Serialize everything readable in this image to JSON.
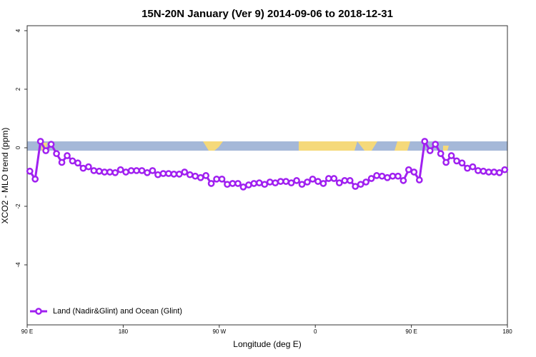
{
  "chart_data": {
    "type": "line",
    "title": "15N-20N January (Ver 9)   2014-09-06 to 2018-12-31",
    "x_label": "Longitude (deg E)",
    "y_label": "XCO2 - MLO trend (ppm)",
    "xlim": [
      90,
      540
    ],
    "xticks": [
      {
        "value": 90,
        "label": "90 E"
      },
      {
        "value": 180,
        "label": "180"
      },
      {
        "value": 270,
        "label": "90 W"
      },
      {
        "value": 360,
        "label": "0"
      },
      {
        "value": 450,
        "label": "90 E"
      },
      {
        "value": 540,
        "label": "180"
      }
    ],
    "ylim": [
      -6.05,
      4.17
    ],
    "yticks": [
      -4,
      -2,
      0,
      2,
      4
    ],
    "legend": "bottom-left",
    "x": [
      92.5,
      97.5,
      102.5,
      107.5,
      112.5,
      117.5,
      122.5,
      127.5,
      132.5,
      137.5,
      142.5,
      147.5,
      152.5,
      157.5,
      162.5,
      167.5,
      172.5,
      177.5,
      182.5,
      187.5,
      192.5,
      197.5,
      202.5,
      207.5,
      212.5,
      217.5,
      222.5,
      227.5,
      232.5,
      237.5,
      242.5,
      247.5,
      252.5,
      257.5,
      262.5,
      267.5,
      272.5,
      277.5,
      282.5,
      287.5,
      292.5,
      297.5,
      302.5,
      307.5,
      312.5,
      317.5,
      322.5,
      327.5,
      332.5,
      337.5,
      342.5,
      347.5,
      352.5,
      357.5,
      362.5,
      367.5,
      372.5,
      377.5,
      382.5,
      387.5,
      392.5,
      397.5,
      402.5,
      407.5,
      412.5,
      417.5,
      422.5,
      427.5,
      432.5,
      437.5,
      442.5,
      447.5,
      452.5,
      457.5,
      462.5,
      467.5,
      472.5,
      477.5,
      482.5,
      487.5,
      492.5,
      497.5,
      502.5,
      507.5,
      512.5,
      517.5,
      522.5,
      527.5,
      532.5,
      537.5
    ],
    "series": [
      {
        "name": "Land (Nadir&Glint) and Ocean (Glint)",
        "color": "#a020f0",
        "values": [
          -0.8,
          -1.07,
          0.22,
          -0.1,
          0.12,
          -0.2,
          -0.5,
          -0.27,
          -0.45,
          -0.52,
          -0.7,
          -0.65,
          -0.78,
          -0.8,
          -0.83,
          -0.83,
          -0.85,
          -0.75,
          -0.83,
          -0.78,
          -0.78,
          -0.78,
          -0.85,
          -0.78,
          -0.92,
          -0.88,
          -0.88,
          -0.9,
          -0.9,
          -0.83,
          -0.92,
          -0.97,
          -1.02,
          -0.95,
          -1.22,
          -1.07,
          -1.07,
          -1.25,
          -1.22,
          -1.22,
          -1.34,
          -1.27,
          -1.22,
          -1.2,
          -1.25,
          -1.17,
          -1.2,
          -1.15,
          -1.15,
          -1.2,
          -1.12,
          -1.25,
          -1.17,
          -1.07,
          -1.15,
          -1.22,
          -1.05,
          -1.05,
          -1.2,
          -1.12,
          -1.12,
          -1.32,
          -1.25,
          -1.17,
          -1.05,
          -0.95,
          -0.97,
          -1.02,
          -0.97,
          -0.97,
          -1.12,
          -0.75,
          -0.83,
          -1.1,
          0.22,
          -0.1,
          0.12,
          -0.2,
          -0.5,
          -0.27,
          -0.45,
          -0.52,
          -0.7,
          -0.65,
          -0.78,
          -0.8,
          -0.83,
          -0.83,
          -0.85,
          -0.75
        ]
      }
    ]
  }
}
